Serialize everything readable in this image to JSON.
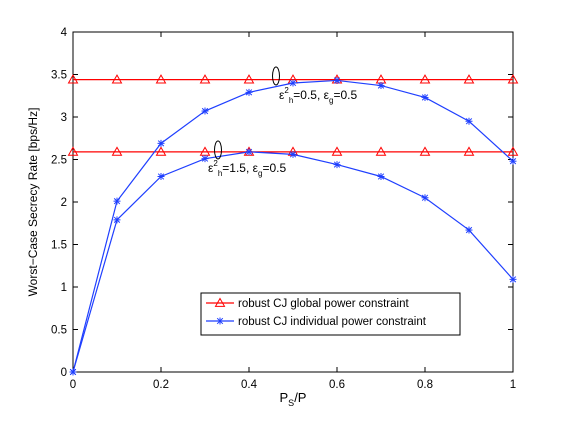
{
  "colors": {
    "global_series": "#ff0000",
    "individual_series": "#1f3fff",
    "axis": "#000000",
    "background": "#ffffff"
  },
  "chart_data": {
    "type": "line",
    "xlabel_main": "P",
    "xlabel_sub": "S",
    "xlabel_tail": "/P",
    "ylabel": "Worst−Case Secrecy Rate [bps/Hz]",
    "xlim": [
      0,
      1
    ],
    "ylim": [
      0,
      4
    ],
    "x_ticks": [
      0,
      0.2,
      0.4,
      0.6,
      0.8,
      1
    ],
    "x_tick_labels": [
      "0",
      "0.2",
      "0.4",
      "0.6",
      "0.8",
      "1"
    ],
    "y_ticks": [
      0,
      0.5,
      1,
      1.5,
      2,
      2.5,
      3,
      3.5,
      4
    ],
    "y_tick_labels": [
      "0",
      "0.5",
      "1",
      "1.5",
      "2",
      "2.5",
      "3",
      "3.5",
      "4"
    ],
    "grid": false,
    "legend_position": "lower-center",
    "legend": [
      {
        "label": "robust CJ global power constraint",
        "marker": "triangle",
        "color": "#ff0000"
      },
      {
        "label": "robust CJ individual power constraint",
        "marker": "asterisk",
        "color": "#1f3fff"
      }
    ],
    "x": [
      0,
      0.1,
      0.2,
      0.3,
      0.4,
      0.5,
      0.6,
      0.7,
      0.8,
      0.9,
      1
    ],
    "series": [
      {
        "group": "upper",
        "legend_index": 0,
        "marker": "triangle",
        "color": "#ff0000",
        "values": [
          3.44,
          3.44,
          3.44,
          3.44,
          3.44,
          3.44,
          3.44,
          3.44,
          3.44,
          3.44,
          3.44
        ]
      },
      {
        "group": "lower",
        "legend_index": 0,
        "marker": "triangle",
        "color": "#ff0000",
        "values": [
          2.59,
          2.59,
          2.59,
          2.59,
          2.59,
          2.59,
          2.59,
          2.59,
          2.59,
          2.59,
          2.59
        ]
      },
      {
        "group": "upper",
        "legend_index": 1,
        "marker": "asterisk",
        "color": "#1f3fff",
        "values": [
          0,
          2.01,
          2.69,
          3.07,
          3.29,
          3.4,
          3.43,
          3.37,
          3.23,
          2.95,
          2.48
        ]
      },
      {
        "group": "lower",
        "legend_index": 1,
        "marker": "asterisk",
        "color": "#1f3fff",
        "values": [
          0,
          1.79,
          2.3,
          2.51,
          2.59,
          2.56,
          2.44,
          2.3,
          2.05,
          1.67,
          1.09
        ]
      }
    ],
    "annotations": [
      {
        "group": "upper",
        "eh": "0.5",
        "eg": "0.5"
      },
      {
        "group": "lower",
        "eh": "1.5",
        "eg": "0.5"
      }
    ]
  }
}
